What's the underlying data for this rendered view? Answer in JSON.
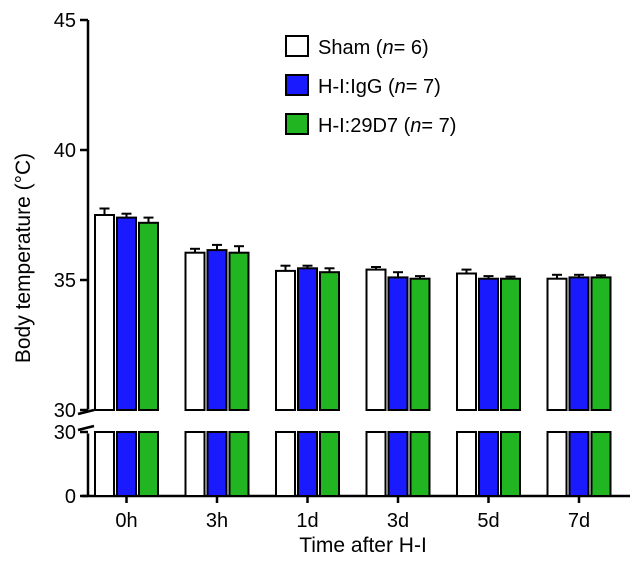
{
  "chart_data": {
    "type": "bar",
    "title": "",
    "xlabel": "Time after H-I",
    "ylabel": "Body temperature (°C)",
    "categories": [
      "0h",
      "3h",
      "1d",
      "3d",
      "5d",
      "7d"
    ],
    "y_axis_break": {
      "upper_segment": {
        "range": [
          30,
          45
        ],
        "ticks": [
          "30",
          "35",
          "40",
          "45"
        ]
      },
      "lower_segment": {
        "range": [
          0,
          30
        ],
        "ticks": [
          "0",
          "30"
        ]
      }
    },
    "legend_placement": "top-right",
    "series": [
      {
        "name": "Sham",
        "n_label": "n",
        "n_value": "= 6)",
        "color": "#ffffff",
        "values": [
          37.5,
          36.05,
          35.35,
          35.4,
          35.25,
          35.05
        ],
        "errors": [
          0.25,
          0.15,
          0.2,
          0.1,
          0.15,
          0.15
        ]
      },
      {
        "name": "H-I:IgG",
        "n_label": "n",
        "n_value": "= 7)",
        "color": "#1a1aff",
        "values": [
          37.4,
          36.15,
          35.45,
          35.1,
          35.05,
          35.1
        ],
        "errors": [
          0.15,
          0.2,
          0.1,
          0.2,
          0.1,
          0.1
        ]
      },
      {
        "name": "H-I:29D7",
        "n_label": "n",
        "n_value": "= 7)",
        "color": "#22b522",
        "values": [
          37.2,
          36.05,
          35.3,
          35.05,
          35.05,
          35.1
        ],
        "errors": [
          0.2,
          0.25,
          0.15,
          0.1,
          0.08,
          0.08
        ]
      }
    ]
  }
}
